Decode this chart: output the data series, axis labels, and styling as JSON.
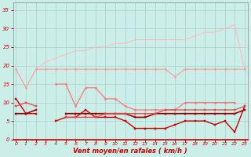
{
  "x": [
    0,
    1,
    2,
    3,
    4,
    5,
    6,
    7,
    8,
    9,
    10,
    11,
    12,
    13,
    14,
    15,
    16,
    17,
    18,
    19,
    20,
    21,
    22,
    23
  ],
  "series": [
    {
      "color": "#ffbbbb",
      "linewidth": 0.8,
      "marker": null,
      "markersize": 0,
      "values": [
        null,
        null,
        19,
        21,
        22,
        23,
        24,
        24,
        25,
        25,
        26,
        26,
        27,
        27,
        27,
        27,
        27,
        27,
        28,
        29,
        29,
        30,
        31,
        19
      ]
    },
    {
      "color": "#ff9999",
      "linewidth": 0.8,
      "marker": "D",
      "markersize": 1.5,
      "values": [
        19,
        14,
        19,
        19,
        19,
        19,
        19,
        19,
        19,
        19,
        19,
        19,
        19,
        19,
        19,
        19,
        17,
        19,
        19,
        19,
        19,
        19,
        19,
        19
      ]
    },
    {
      "color": "#ff7777",
      "linewidth": 0.9,
      "marker": "D",
      "markersize": 1.5,
      "values": [
        null,
        null,
        null,
        null,
        15,
        15,
        9,
        14,
        14,
        11,
        11,
        9,
        8,
        8,
        8,
        8,
        8,
        10,
        10,
        10,
        10,
        10,
        10,
        null
      ]
    },
    {
      "color": "#cc0000",
      "linewidth": 1.0,
      "marker": "s",
      "markersize": 2.0,
      "values": [
        11,
        7,
        7,
        null,
        5,
        6,
        6,
        8,
        6,
        6,
        6,
        5,
        3,
        3,
        3,
        3,
        4,
        5,
        5,
        5,
        4,
        5,
        2,
        9
      ]
    },
    {
      "color": "#990000",
      "linewidth": 1.2,
      "marker": "s",
      "markersize": 2.0,
      "values": [
        7,
        7,
        8,
        null,
        null,
        7,
        7,
        7,
        7,
        7,
        7,
        7,
        6,
        6,
        7,
        7,
        7,
        7,
        7,
        7,
        7,
        7,
        7,
        8
      ]
    },
    {
      "color": "#ee4444",
      "linewidth": 0.9,
      "marker": "s",
      "markersize": 1.8,
      "values": [
        9,
        10,
        9,
        null,
        null,
        6,
        6,
        6,
        6,
        7,
        7,
        7,
        7,
        7,
        7,
        8,
        8,
        8,
        8,
        8,
        8,
        8,
        8,
        9
      ]
    }
  ],
  "xlim": [
    -0.3,
    23.3
  ],
  "ylim": [
    0,
    37
  ],
  "yticks": [
    0,
    5,
    10,
    15,
    20,
    25,
    30,
    35
  ],
  "xticks": [
    0,
    1,
    2,
    3,
    4,
    5,
    6,
    7,
    8,
    9,
    10,
    11,
    12,
    13,
    14,
    15,
    16,
    17,
    18,
    19,
    20,
    21,
    22,
    23
  ],
  "xlabel": "Vent moyen/en rafales ( km/h )",
  "background_color": "#cceee8",
  "grid_color": "#aacccc",
  "tick_color": "#cc0000",
  "xlabel_color": "#cc0000",
  "spine_bottom_color": "#cc0000"
}
